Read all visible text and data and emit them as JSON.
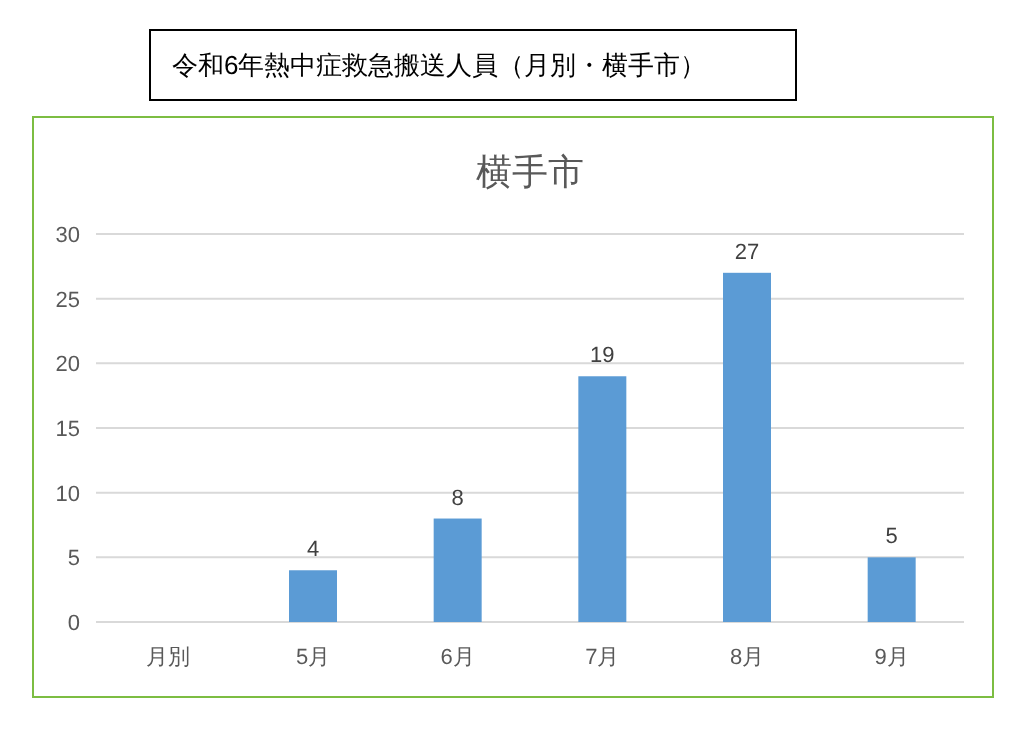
{
  "chart_data": {
    "type": "bar",
    "title": "令和6年熱中症救急搬送人員（月別・横手市）",
    "subtitle": "横手市",
    "categories": [
      "月別",
      "5月",
      "6月",
      "7月",
      "8月",
      "9月"
    ],
    "values": [
      null,
      4,
      8,
      19,
      27,
      5
    ],
    "color": "#5b9bd5",
    "ylim": [
      0,
      30
    ],
    "yticks": [
      0,
      5,
      10,
      15,
      20,
      25,
      30
    ],
    "grid": "y",
    "data_labels": true
  }
}
